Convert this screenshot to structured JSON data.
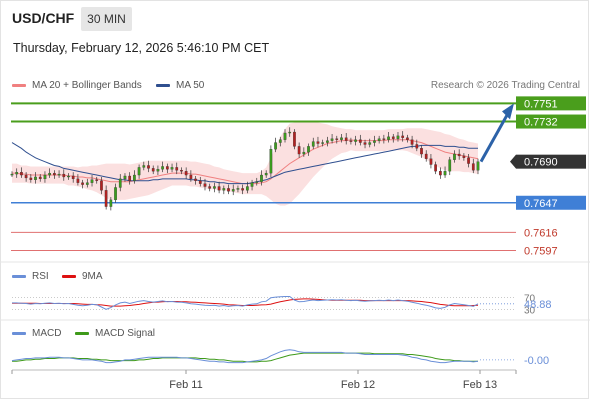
{
  "header": {
    "symbol": "USD/CHF",
    "timeframe": "30 MIN",
    "datetime": "Thursday, February 12, 2026 5:46:10 PM CET"
  },
  "legend": {
    "bollinger": {
      "label": "MA 20 + Bollinger Bands",
      "color": "#f08080"
    },
    "ma50": {
      "label": "MA 50",
      "color": "#2f4f8f"
    },
    "copyright": "Research © 2026 Trading Central"
  },
  "colors": {
    "resistance": "#4a9e1c",
    "support": "#3f7fd6",
    "minor": "#e07070",
    "arrow": "#2c62a8",
    "candle_up": "#3b9c1e",
    "candle_down": "#b22222",
    "band_fill": "#fbe0e0",
    "current_label": "#333333"
  },
  "chart_data": [
    {
      "type": "line",
      "title": "USD/CHF",
      "subtitle": "30 MIN",
      "x_labels": [
        "Feb 11",
        "Feb 12",
        "Feb 13"
      ],
      "ylim": [
        0.7585,
        0.7765
      ],
      "levels": [
        {
          "value": 0.7751,
          "label": "0.7751",
          "kind": "resistance"
        },
        {
          "value": 0.7732,
          "label": "0.7732",
          "kind": "resistance"
        },
        {
          "value": 0.769,
          "label": "0.7690",
          "kind": "current"
        },
        {
          "value": 0.7647,
          "label": "0.7647",
          "kind": "support"
        },
        {
          "value": 0.7616,
          "label": "0.7616",
          "kind": "minor"
        },
        {
          "value": 0.7597,
          "label": "0.7597",
          "kind": "minor"
        }
      ],
      "price_close": [
        0.7677,
        0.7679,
        0.7676,
        0.7673,
        0.7671,
        0.7674,
        0.7672,
        0.7676,
        0.7678,
        0.7676,
        0.7677,
        0.7674,
        0.7675,
        0.7672,
        0.7668,
        0.7666,
        0.7668,
        0.7671,
        0.767,
        0.766,
        0.7643,
        0.765,
        0.7663,
        0.7672,
        0.7675,
        0.767,
        0.7676,
        0.7684,
        0.7686,
        0.7683,
        0.768,
        0.7682,
        0.7685,
        0.7682,
        0.7684,
        0.7681,
        0.768,
        0.7676,
        0.7672,
        0.767,
        0.7667,
        0.7664,
        0.7662,
        0.7664,
        0.766,
        0.7662,
        0.7659,
        0.7661,
        0.7662,
        0.766,
        0.7664,
        0.7668,
        0.7669,
        0.7676,
        0.7678,
        0.7703,
        0.771,
        0.7713,
        0.772,
        0.7721,
        0.7706,
        0.7698,
        0.77,
        0.7706,
        0.7711,
        0.7709,
        0.771,
        0.7712,
        0.7714,
        0.7713,
        0.7715,
        0.7712,
        0.7711,
        0.7713,
        0.771,
        0.7708,
        0.771,
        0.7712,
        0.7714,
        0.7713,
        0.7716,
        0.7714,
        0.7717,
        0.7715,
        0.7713,
        0.7708,
        0.7704,
        0.7698,
        0.7693,
        0.7687,
        0.768,
        0.7676,
        0.768,
        0.7692,
        0.7698,
        0.7696,
        0.7694,
        0.7688,
        0.7681,
        0.769
      ],
      "ma50": [
        0.771,
        0.7707,
        0.7704,
        0.77,
        0.7697,
        0.7694,
        0.7692,
        0.769,
        0.7688,
        0.7686,
        0.7685,
        0.7683,
        0.7682,
        0.7681,
        0.768,
        0.7679,
        0.7678,
        0.7677,
        0.7676,
        0.7675,
        0.7674,
        0.7673,
        0.7672,
        0.7671,
        0.7671,
        0.767,
        0.767,
        0.767,
        0.767,
        0.767,
        0.7671,
        0.7671,
        0.7672,
        0.7672,
        0.7672,
        0.7672,
        0.7672,
        0.7672,
        0.7671,
        0.7671,
        0.767,
        0.767,
        0.7669,
        0.7669,
        0.7668,
        0.7668,
        0.7667,
        0.7667,
        0.7667,
        0.7667,
        0.7667,
        0.7668,
        0.7669,
        0.767,
        0.7671,
        0.7673,
        0.7675,
        0.7677,
        0.7679,
        0.768,
        0.7681,
        0.7682,
        0.7683,
        0.7684,
        0.7685,
        0.7686,
        0.7687,
        0.7688,
        0.7689,
        0.769,
        0.7691,
        0.7692,
        0.7693,
        0.7694,
        0.7695,
        0.7696,
        0.7697,
        0.7698,
        0.7699,
        0.77,
        0.7701,
        0.7702,
        0.7703,
        0.7704,
        0.7705,
        0.7706,
        0.7706,
        0.7707,
        0.7707,
        0.7707,
        0.7707,
        0.7707,
        0.7706,
        0.7706,
        0.7706,
        0.7705,
        0.7705,
        0.7704,
        0.7704,
        0.7704
      ],
      "ma20": [
        0.7678,
        0.7678,
        0.7677,
        0.7677,
        0.7676,
        0.7676,
        0.7676,
        0.7676,
        0.7676,
        0.7676,
        0.7676,
        0.7676,
        0.7675,
        0.7675,
        0.7674,
        0.7674,
        0.7673,
        0.7673,
        0.7672,
        0.7671,
        0.767,
        0.7669,
        0.7669,
        0.7669,
        0.7669,
        0.7669,
        0.767,
        0.7671,
        0.7672,
        0.7673,
        0.7674,
        0.7675,
        0.7676,
        0.7677,
        0.7678,
        0.7678,
        0.7678,
        0.7678,
        0.7677,
        0.7677,
        0.7676,
        0.7675,
        0.7674,
        0.7673,
        0.7672,
        0.7671,
        0.767,
        0.7669,
        0.7668,
        0.7667,
        0.7667,
        0.7667,
        0.7667,
        0.7668,
        0.7669,
        0.7672,
        0.7676,
        0.768,
        0.7684,
        0.7688,
        0.7691,
        0.7694,
        0.7697,
        0.77,
        0.7703,
        0.7705,
        0.7707,
        0.7709,
        0.771,
        0.7711,
        0.7712,
        0.7712,
        0.7713,
        0.7712,
        0.7712,
        0.7712,
        0.7712,
        0.7712,
        0.7712,
        0.7712,
        0.7713,
        0.7713,
        0.7713,
        0.7713,
        0.7713,
        0.7712,
        0.7711,
        0.771,
        0.7708,
        0.7706,
        0.7704,
        0.7702,
        0.77,
        0.7699,
        0.7698,
        0.7697,
        0.7696,
        0.7695,
        0.7694,
        0.7693
      ],
      "band_width": [
        0.001,
        0.001,
        0.0009,
        0.0009,
        0.0009,
        0.0009,
        0.0009,
        0.0009,
        0.0009,
        0.0009,
        0.0009,
        0.0009,
        0.001,
        0.001,
        0.001,
        0.0011,
        0.0012,
        0.0013,
        0.0014,
        0.0016,
        0.0018,
        0.0019,
        0.0019,
        0.0019,
        0.0019,
        0.0018,
        0.0018,
        0.0018,
        0.0018,
        0.0018,
        0.0017,
        0.0016,
        0.0015,
        0.0014,
        0.0013,
        0.0013,
        0.0013,
        0.0013,
        0.0013,
        0.0013,
        0.0013,
        0.0013,
        0.0013,
        0.0012,
        0.0012,
        0.0011,
        0.0011,
        0.0011,
        0.0011,
        0.0011,
        0.0011,
        0.0011,
        0.0011,
        0.0012,
        0.0015,
        0.0022,
        0.003,
        0.0036,
        0.004,
        0.0042,
        0.004,
        0.0038,
        0.0035,
        0.0032,
        0.0029,
        0.0026,
        0.0023,
        0.002,
        0.0017,
        0.0015,
        0.0013,
        0.0012,
        0.0011,
        0.0011,
        0.0011,
        0.0011,
        0.0011,
        0.0011,
        0.0011,
        0.0011,
        0.0011,
        0.0011,
        0.0011,
        0.0011,
        0.0012,
        0.0013,
        0.0014,
        0.0015,
        0.0016,
        0.0017,
        0.0018,
        0.0019,
        0.0019,
        0.0019,
        0.0018,
        0.0017,
        0.0017,
        0.0016,
        0.0016,
        0.0016
      ],
      "target_arrow": {
        "from": 0.769,
        "to": 0.7751
      }
    },
    {
      "type": "line",
      "title": "RSI",
      "series": [
        {
          "name": "RSI"
        },
        {
          "name": "9MA"
        }
      ],
      "levels": [
        70,
        30
      ],
      "level_labels": [
        "70",
        "30"
      ],
      "current": "48.88",
      "ylim": [
        0,
        100
      ],
      "rsi": [
        52,
        52,
        51,
        50,
        48,
        50,
        49,
        51,
        52,
        50,
        51,
        49,
        50,
        47,
        44,
        42,
        44,
        47,
        46,
        38,
        30,
        36,
        45,
        52,
        55,
        50,
        54,
        58,
        60,
        57,
        55,
        57,
        59,
        56,
        57,
        55,
        54,
        52,
        49,
        48,
        46,
        44,
        43,
        44,
        41,
        43,
        40,
        42,
        43,
        41,
        45,
        48,
        49,
        56,
        58,
        70,
        72,
        73,
        74,
        74,
        62,
        56,
        57,
        60,
        62,
        60,
        61,
        62,
        63,
        62,
        63,
        61,
        60,
        61,
        59,
        58,
        59,
        60,
        61,
        60,
        62,
        60,
        62,
        60,
        58,
        54,
        51,
        47,
        44,
        40,
        35,
        33,
        37,
        45,
        50,
        48,
        46,
        43,
        40,
        48.88
      ],
      "ma9": [
        51,
        51,
        51,
        51,
        51,
        51,
        50,
        50,
        50,
        50,
        50,
        50,
        50,
        50,
        49,
        48,
        47,
        47,
        46,
        45,
        43,
        41,
        41,
        41,
        42,
        43,
        45,
        47,
        50,
        52,
        54,
        55,
        56,
        57,
        57,
        57,
        56,
        56,
        55,
        54,
        53,
        52,
        51,
        50,
        49,
        48,
        46,
        45,
        44,
        43,
        43,
        43,
        44,
        45,
        46,
        48,
        52,
        56,
        59,
        62,
        64,
        65,
        66,
        66,
        65,
        64,
        63,
        62,
        61,
        61,
        61,
        61,
        61,
        61,
        61,
        60,
        60,
        60,
        60,
        60,
        60,
        60,
        60,
        60,
        60,
        59,
        58,
        57,
        55,
        53,
        50,
        47,
        45,
        43,
        42,
        42,
        42,
        42,
        43,
        44
      ]
    },
    {
      "type": "line",
      "title": "MACD",
      "series": [
        {
          "name": "MACD"
        },
        {
          "name": "MACD Signal"
        }
      ],
      "current": "-0.00",
      "ylim": [
        -0.0012,
        0.0022
      ],
      "macd": [
        -0.0001,
        0.0,
        0.0001,
        0.0002,
        0.0002,
        0.0003,
        0.0003,
        0.0003,
        0.0004,
        0.0004,
        0.0004,
        0.0003,
        0.0003,
        0.0002,
        0.0001,
        0.0,
        0.0,
        0.0,
        -0.0001,
        -0.0002,
        -0.0004,
        -0.0004,
        -0.0003,
        -0.0002,
        0.0,
        0.0,
        0.0001,
        0.0002,
        0.0003,
        0.0004,
        0.0004,
        0.0004,
        0.0004,
        0.0004,
        0.0004,
        0.0004,
        0.0003,
        0.0003,
        0.0002,
        0.0001,
        0.0,
        -0.0001,
        -0.0002,
        -0.0002,
        -0.0003,
        -0.0003,
        -0.0004,
        -0.0004,
        -0.0004,
        -0.0004,
        -0.0003,
        -0.0002,
        -0.0001,
        0.0,
        0.0002,
        0.0006,
        0.0009,
        0.0012,
        0.0014,
        0.0015,
        0.0014,
        0.0012,
        0.0011,
        0.0011,
        0.0011,
        0.0011,
        0.0011,
        0.0011,
        0.0011,
        0.0011,
        0.0011,
        0.001,
        0.001,
        0.001,
        0.0009,
        0.0008,
        0.0008,
        0.0008,
        0.0008,
        0.0008,
        0.0008,
        0.0008,
        0.0008,
        0.0007,
        0.0006,
        0.0004,
        0.0003,
        0.0001,
        0.0,
        -0.0002,
        -0.0003,
        -0.0004,
        -0.0004,
        -0.0003,
        -0.0002,
        -0.0002,
        -0.0002,
        -0.0002,
        -0.0003,
        -0.0002
      ],
      "signal": [
        -0.0002,
        -0.0002,
        -0.0001,
        0.0,
        0.0,
        0.0001,
        0.0001,
        0.0002,
        0.0002,
        0.0002,
        0.0003,
        0.0003,
        0.0003,
        0.0003,
        0.0002,
        0.0002,
        0.0002,
        0.0001,
        0.0001,
        0.0,
        0.0,
        -0.0001,
        -0.0001,
        -0.0001,
        -0.0001,
        -0.0001,
        -0.0001,
        0.0,
        0.0,
        0.0001,
        0.0002,
        0.0002,
        0.0003,
        0.0003,
        0.0003,
        0.0003,
        0.0003,
        0.0003,
        0.0003,
        0.0003,
        0.0002,
        0.0002,
        0.0001,
        0.0001,
        0.0,
        0.0,
        -0.0001,
        -0.0002,
        -0.0002,
        -0.0002,
        -0.0003,
        -0.0003,
        -0.0003,
        -0.0002,
        -0.0002,
        -0.0001,
        0.0001,
        0.0003,
        0.0005,
        0.0007,
        0.0008,
        0.0009,
        0.001,
        0.001,
        0.001,
        0.001,
        0.001,
        0.001,
        0.001,
        0.001,
        0.001,
        0.001,
        0.001,
        0.001,
        0.001,
        0.001,
        0.001,
        0.0009,
        0.0009,
        0.0009,
        0.0009,
        0.0009,
        0.0009,
        0.0009,
        0.0008,
        0.0008,
        0.0007,
        0.0006,
        0.0005,
        0.0004,
        0.0002,
        0.0001,
        0.0,
        0.0,
        -0.0001,
        -0.0001,
        -0.0002,
        -0.0002,
        -0.0002,
        -0.0002
      ]
    }
  ]
}
